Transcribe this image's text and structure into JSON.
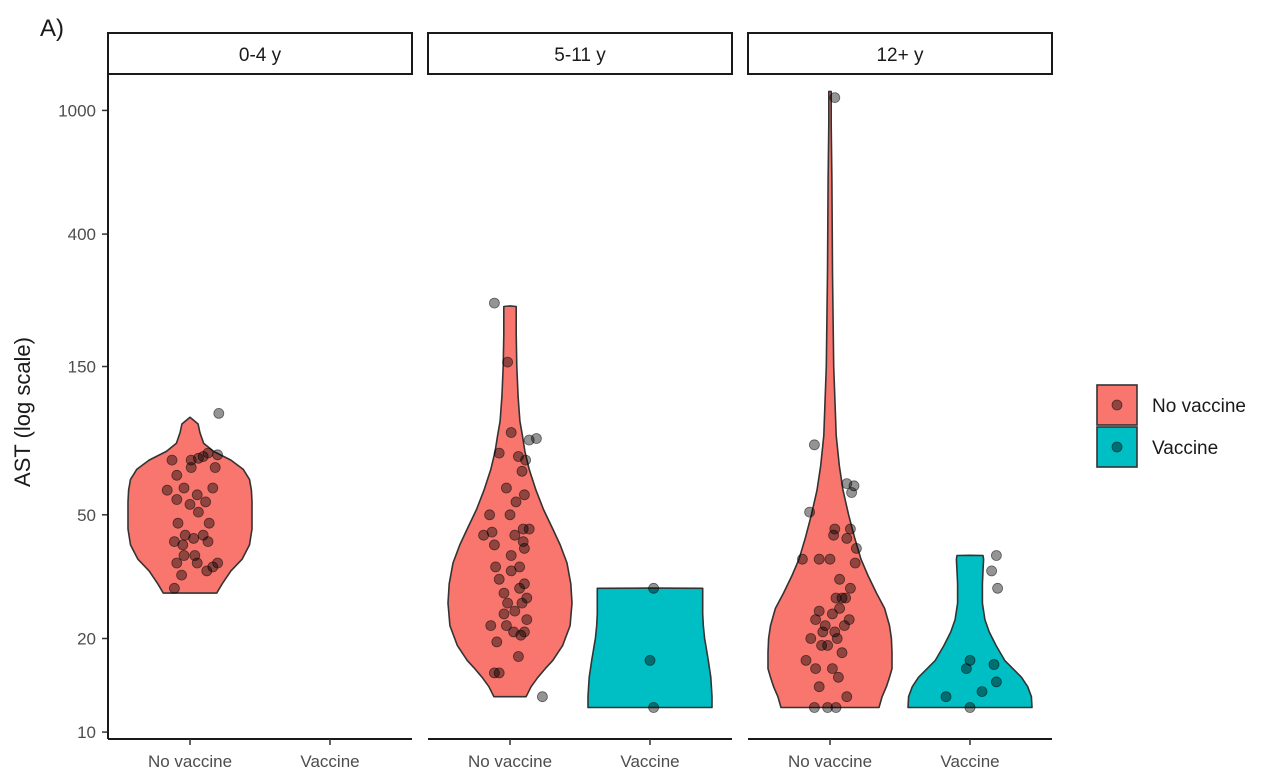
{
  "panel_tag": "A)",
  "chart_data": {
    "type": "violin",
    "ylabel": "AST (log scale)",
    "y_scale": "log",
    "ylim": [
      9.5,
      1300
    ],
    "yticks": [
      10,
      20,
      50,
      150,
      400,
      1000
    ],
    "categories": [
      "No vaccine",
      "Vaccine"
    ],
    "legend": {
      "position": "right",
      "items": [
        {
          "label": "No vaccine",
          "color": "#F8766D"
        },
        {
          "label": "Vaccine",
          "color": "#00BFC4"
        }
      ]
    },
    "facets": [
      {
        "label": "0-4 y",
        "groups": [
          {
            "name": "No vaccine",
            "color": "#F8766D",
            "violin": [
              [
                28,
                0.43
              ],
              [
                30,
                0.52
              ],
              [
                33,
                0.66
              ],
              [
                36,
                0.84
              ],
              [
                40,
                0.96
              ],
              [
                45,
                1.0
              ],
              [
                50,
                1.0
              ],
              [
                55,
                1.0
              ],
              [
                60,
                0.99
              ],
              [
                65,
                0.96
              ],
              [
                70,
                0.86
              ],
              [
                75,
                0.66
              ],
              [
                80,
                0.38
              ],
              [
                85,
                0.22
              ],
              [
                92,
                0.16
              ],
              [
                98,
                0.13
              ],
              [
                103,
                0.0
              ]
            ],
            "points": [
              [
                -0.13,
                29
              ],
              [
                -0.07,
                32
              ],
              [
                0.06,
                35
              ],
              [
                0.14,
                33
              ],
              [
                -0.11,
                35
              ],
              [
                0.19,
                34
              ],
              [
                0.23,
                35
              ],
              [
                -0.05,
                37
              ],
              [
                0.04,
                37
              ],
              [
                -0.13,
                41
              ],
              [
                -0.06,
                40
              ],
              [
                0.03,
                42
              ],
              [
                0.15,
                41
              ],
              [
                -0.04,
                43
              ],
              [
                0.11,
                43
              ],
              [
                0.16,
                47
              ],
              [
                -0.1,
                47
              ],
              [
                0.07,
                51
              ],
              [
                0.0,
                54
              ],
              [
                0.13,
                55
              ],
              [
                -0.11,
                56
              ],
              [
                0.06,
                58
              ],
              [
                -0.19,
                60
              ],
              [
                -0.05,
                61
              ],
              [
                0.19,
                61
              ],
              [
                -0.11,
                67
              ],
              [
                0.21,
                71
              ],
              [
                0.01,
                71
              ],
              [
                -0.15,
                75
              ],
              [
                0.01,
                75
              ],
              [
                0.07,
                76
              ],
              [
                0.11,
                77
              ],
              [
                0.23,
                78
              ],
              [
                0.15,
                79
              ],
              [
                0.24,
                106
              ]
            ]
          },
          {
            "name": "Vaccine",
            "color": "#00BFC4",
            "violin": [],
            "points": []
          }
        ]
      },
      {
        "label": "5-11 y",
        "groups": [
          {
            "name": "No vaccine",
            "color": "#F8766D",
            "violin": [
              [
                13,
                0.26
              ],
              [
                14,
                0.34
              ],
              [
                15,
                0.45
              ],
              [
                16,
                0.57
              ],
              [
                17,
                0.69
              ],
              [
                19,
                0.85
              ],
              [
                22,
                0.97
              ],
              [
                26,
                1.0
              ],
              [
                30,
                0.98
              ],
              [
                35,
                0.92
              ],
              [
                40,
                0.81
              ],
              [
                45,
                0.69
              ],
              [
                52,
                0.54
              ],
              [
                60,
                0.42
              ],
              [
                70,
                0.31
              ],
              [
                80,
                0.24
              ],
              [
                90,
                0.2
              ],
              [
                100,
                0.16
              ],
              [
                120,
                0.13
              ],
              [
                150,
                0.11
              ],
              [
                190,
                0.1
              ],
              [
                234,
                0.1
              ],
              [
                235,
                0.0
              ]
            ],
            "points": [
              [
                0.27,
                13
              ],
              [
                -0.09,
                15.5
              ],
              [
                -0.13,
                15.5
              ],
              [
                0.07,
                17.5
              ],
              [
                -0.11,
                19.5
              ],
              [
                0.09,
                20.5
              ],
              [
                0.12,
                21
              ],
              [
                -0.16,
                22
              ],
              [
                0.03,
                21
              ],
              [
                -0.03,
                22
              ],
              [
                0.14,
                23
              ],
              [
                -0.05,
                24
              ],
              [
                0.04,
                24.5
              ],
              [
                0.1,
                26
              ],
              [
                -0.02,
                26
              ],
              [
                0.14,
                27
              ],
              [
                -0.05,
                28
              ],
              [
                0.08,
                29
              ],
              [
                0.12,
                30
              ],
              [
                -0.09,
                31
              ],
              [
                0.01,
                33
              ],
              [
                -0.12,
                34
              ],
              [
                0.08,
                34
              ],
              [
                0.01,
                37
              ],
              [
                0.12,
                39
              ],
              [
                -0.13,
                40
              ],
              [
                0.11,
                41
              ],
              [
                -0.22,
                43
              ],
              [
                0.04,
                43
              ],
              [
                -0.15,
                44
              ],
              [
                0.11,
                45
              ],
              [
                0.16,
                45
              ],
              [
                -0.17,
                50
              ],
              [
                0.0,
                50
              ],
              [
                0.05,
                55
              ],
              [
                0.12,
                58
              ],
              [
                -0.03,
                61
              ],
              [
                0.1,
                69
              ],
              [
                0.13,
                75
              ],
              [
                0.07,
                77
              ],
              [
                -0.09,
                79
              ],
              [
                0.16,
                87
              ],
              [
                0.01,
                92
              ],
              [
                0.22,
                88
              ],
              [
                -0.02,
                155
              ],
              [
                -0.13,
                240
              ]
            ]
          },
          {
            "name": "Vaccine",
            "color": "#00BFC4",
            "violin": [
              [
                12,
                1.0
              ],
              [
                13,
                1.0
              ],
              [
                14,
                0.99
              ],
              [
                15,
                0.98
              ],
              [
                16,
                0.96
              ],
              [
                17,
                0.94
              ],
              [
                18,
                0.92
              ],
              [
                19,
                0.9
              ],
              [
                20,
                0.88
              ],
              [
                22,
                0.86
              ],
              [
                24,
                0.85
              ],
              [
                26,
                0.85
              ],
              [
                28,
                0.85
              ],
              [
                29,
                0.85
              ],
              [
                29.05,
                0.0
              ]
            ],
            "points": [
              [
                0.03,
                12
              ],
              [
                0.0,
                17
              ],
              [
                0.03,
                29
              ]
            ]
          }
        ]
      },
      {
        "label": "12+ y",
        "groups": [
          {
            "name": "No vaccine",
            "color": "#F8766D",
            "violin": [
              [
                12,
                0.79
              ],
              [
                13,
                0.84
              ],
              [
                14,
                0.91
              ],
              [
                15,
                0.96
              ],
              [
                16,
                1.0
              ],
              [
                18,
                1.0
              ],
              [
                20,
                0.99
              ],
              [
                22,
                0.96
              ],
              [
                25,
                0.88
              ],
              [
                28,
                0.75
              ],
              [
                32,
                0.61
              ],
              [
                36,
                0.5
              ],
              [
                42,
                0.4
              ],
              [
                50,
                0.3
              ],
              [
                60,
                0.21
              ],
              [
                72,
                0.15
              ],
              [
                90,
                0.1
              ],
              [
                150,
                0.06
              ],
              [
                300,
                0.04
              ],
              [
                600,
                0.03
              ],
              [
                900,
                0.02
              ],
              [
                1150,
                0.02
              ],
              [
                1151,
                0.0
              ]
            ],
            "points": [
              [
                -0.13,
                12
              ],
              [
                -0.02,
                12
              ],
              [
                0.05,
                12
              ],
              [
                0.14,
                13
              ],
              [
                -0.09,
                14
              ],
              [
                0.07,
                15
              ],
              [
                -0.12,
                16
              ],
              [
                0.02,
                16
              ],
              [
                -0.2,
                17
              ],
              [
                0.1,
                18
              ],
              [
                -0.07,
                19
              ],
              [
                -0.02,
                19
              ],
              [
                0.06,
                20
              ],
              [
                -0.16,
                20
              ],
              [
                0.04,
                21
              ],
              [
                -0.06,
                21
              ],
              [
                0.12,
                22
              ],
              [
                -0.04,
                22
              ],
              [
                0.16,
                23
              ],
              [
                -0.12,
                23
              ],
              [
                0.02,
                24
              ],
              [
                -0.09,
                24.5
              ],
              [
                0.08,
                25
              ],
              [
                0.13,
                27
              ],
              [
                0.1,
                27
              ],
              [
                0.05,
                27
              ],
              [
                0.17,
                29
              ],
              [
                0.08,
                31
              ],
              [
                -0.23,
                36
              ],
              [
                -0.09,
                36
              ],
              [
                0.0,
                36
              ],
              [
                0.21,
                35
              ],
              [
                0.22,
                39
              ],
              [
                0.14,
                42
              ],
              [
                0.03,
                43
              ],
              [
                0.17,
                45
              ],
              [
                0.04,
                45
              ],
              [
                -0.17,
                51
              ],
              [
                0.18,
                59
              ],
              [
                0.2,
                62
              ],
              [
                0.14,
                63
              ],
              [
                -0.13,
                84
              ],
              [
                0.04,
                1100
              ]
            ]
          },
          {
            "name": "Vaccine",
            "color": "#00BFC4",
            "violin": [
              [
                12,
                1.0
              ],
              [
                13,
                0.99
              ],
              [
                14,
                0.93
              ],
              [
                15,
                0.83
              ],
              [
                16,
                0.69
              ],
              [
                17,
                0.56
              ],
              [
                19,
                0.42
              ],
              [
                21,
                0.31
              ],
              [
                23,
                0.24
              ],
              [
                26,
                0.2
              ],
              [
                30,
                0.2
              ],
              [
                33,
                0.21
              ],
              [
                36,
                0.22
              ],
              [
                37,
                0.21
              ],
              [
                37.05,
                0.0
              ]
            ],
            "points": [
              [
                -0.2,
                13
              ],
              [
                0.0,
                12
              ],
              [
                0.1,
                13.5
              ],
              [
                0.22,
                14.5
              ],
              [
                -0.03,
                16
              ],
              [
                0.2,
                16.5
              ],
              [
                0.0,
                17
              ],
              [
                0.23,
                29
              ],
              [
                0.18,
                33
              ],
              [
                0.22,
                37
              ]
            ]
          }
        ]
      }
    ]
  }
}
